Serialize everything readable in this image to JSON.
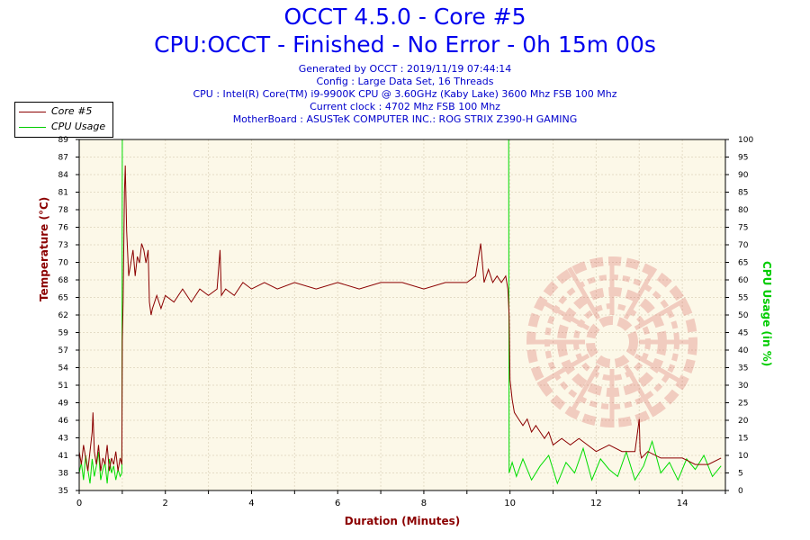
{
  "header": {
    "title": "OCCT 4.5.0 - Core #5",
    "subtitle": "CPU:OCCT - Finished - No Error - 0h 15m 00s",
    "generated": "Generated by OCCT : 2019/11/19 07:44:14",
    "config": "Config : Large Data Set, 16 Threads",
    "cpu": "CPU : Intel(R) Core(TM) i9-9900K CPU @ 3.60GHz (Kaby Lake) 3600 Mhz FSB 100 Mhz",
    "clock": "Current clock : 4702 Mhz FSB 100 Mhz",
    "motherboard": "MotherBoard : ASUSTeK COMPUTER INC.: ROG STRIX Z390-H GAMING"
  },
  "legend": {
    "items": [
      {
        "label": "Core #5",
        "color": "#8b0000"
      },
      {
        "label": "CPU Usage",
        "color": "#00cc00"
      }
    ]
  },
  "colors": {
    "background": "#fcf8e8",
    "grid": "#e8e0cc",
    "temperature": "#8b0000",
    "usage": "#00dd00",
    "title": "#0000ee"
  },
  "chart_data": {
    "type": "line",
    "xlabel": "Duration (Minutes)",
    "ylabel_left": "Temperature (°C)",
    "ylabel_right": "CPU Usage (in %)",
    "xlim": [
      0,
      15
    ],
    "ylim_left": [
      35,
      89
    ],
    "ylim_right": [
      0,
      100
    ],
    "x_ticks": [
      "0",
      "2",
      "4",
      "6",
      "8",
      "10",
      "12",
      "14"
    ],
    "y_left_ticks": [
      "35",
      "38",
      "41",
      "43",
      "46",
      "49",
      "51",
      "54",
      "57",
      "59",
      "62",
      "65",
      "68",
      "70",
      "73",
      "76",
      "78",
      "81",
      "84",
      "87",
      "89"
    ],
    "y_right_ticks": [
      "0",
      "5",
      "10",
      "15",
      "20",
      "25",
      "30",
      "35",
      "40",
      "45",
      "50",
      "55",
      "60",
      "65",
      "70",
      "75",
      "80",
      "85",
      "90",
      "95",
      "100"
    ],
    "grid": true,
    "legend_position": "top-left",
    "series": [
      {
        "name": "Core #5",
        "axis": "left",
        "x": [
          0,
          0.05,
          0.1,
          0.15,
          0.2,
          0.25,
          0.3,
          0.32,
          0.35,
          0.4,
          0.45,
          0.5,
          0.55,
          0.6,
          0.65,
          0.7,
          0.75,
          0.8,
          0.85,
          0.9,
          0.95,
          0.99,
          1.0,
          1.02,
          1.05,
          1.07,
          1.1,
          1.15,
          1.2,
          1.25,
          1.3,
          1.35,
          1.4,
          1.45,
          1.5,
          1.55,
          1.6,
          1.63,
          1.67,
          1.7,
          1.8,
          1.9,
          2.0,
          2.2,
          2.4,
          2.6,
          2.8,
          3.0,
          3.2,
          3.27,
          3.3,
          3.4,
          3.6,
          3.8,
          4.0,
          4.3,
          4.6,
          5.0,
          5.5,
          6.0,
          6.5,
          7.0,
          7.5,
          8.0,
          8.5,
          9.0,
          9.2,
          9.32,
          9.4,
          9.5,
          9.6,
          9.7,
          9.8,
          9.9,
          9.95,
          9.98,
          10.0,
          10.05,
          10.1,
          10.2,
          10.3,
          10.4,
          10.5,
          10.6,
          10.7,
          10.8,
          10.9,
          11.0,
          11.2,
          11.4,
          11.6,
          11.8,
          12.0,
          12.3,
          12.6,
          12.9,
          13.0,
          13.02,
          13.05,
          13.2,
          13.5,
          13.8,
          14.0,
          14.3,
          14.6,
          14.9
        ],
        "values": [
          41,
          39,
          42,
          40,
          38,
          41,
          44,
          47,
          41,
          39,
          42,
          38,
          40,
          39,
          42,
          38,
          40,
          39,
          41,
          38,
          40,
          39,
          58,
          64,
          81,
          85,
          75,
          68,
          70,
          72,
          68,
          71,
          70,
          73,
          72,
          70,
          72,
          64,
          62,
          63,
          65,
          63,
          65,
          64,
          66,
          64,
          66,
          65,
          66,
          72,
          65,
          66,
          65,
          67,
          66,
          67,
          66,
          67,
          66,
          67,
          66,
          67,
          67,
          66,
          67,
          67,
          68,
          73,
          67,
          69,
          67,
          68,
          67,
          68,
          66,
          62,
          52,
          49,
          47,
          46,
          45,
          46,
          44,
          45,
          44,
          43,
          44,
          42,
          43,
          42,
          43,
          42,
          41,
          42,
          41,
          41,
          46,
          41,
          40,
          41,
          40,
          40,
          40,
          39,
          39,
          40
        ]
      },
      {
        "name": "CPU Usage",
        "axis": "right",
        "x": [
          0,
          0.05,
          0.1,
          0.15,
          0.2,
          0.25,
          0.3,
          0.35,
          0.4,
          0.45,
          0.5,
          0.55,
          0.6,
          0.65,
          0.7,
          0.75,
          0.8,
          0.85,
          0.9,
          0.95,
          0.99,
          1.0,
          9.97,
          9.98,
          10.05,
          10.15,
          10.3,
          10.5,
          10.7,
          10.9,
          11.1,
          11.3,
          11.5,
          11.7,
          11.9,
          12.1,
          12.3,
          12.5,
          12.7,
          12.9,
          13.1,
          13.3,
          13.5,
          13.7,
          13.9,
          14.1,
          14.3,
          14.5,
          14.7,
          14.9
        ],
        "values": [
          5,
          8,
          3,
          10,
          6,
          2,
          9,
          4,
          7,
          11,
          3,
          6,
          8,
          2,
          9,
          5,
          7,
          3,
          6,
          4,
          5,
          100,
          100,
          5,
          8,
          4,
          9,
          3,
          7,
          10,
          2,
          8,
          5,
          12,
          3,
          9,
          6,
          4,
          11,
          3,
          7,
          14,
          5,
          8,
          3,
          9,
          6,
          10,
          4,
          7
        ]
      }
    ]
  }
}
